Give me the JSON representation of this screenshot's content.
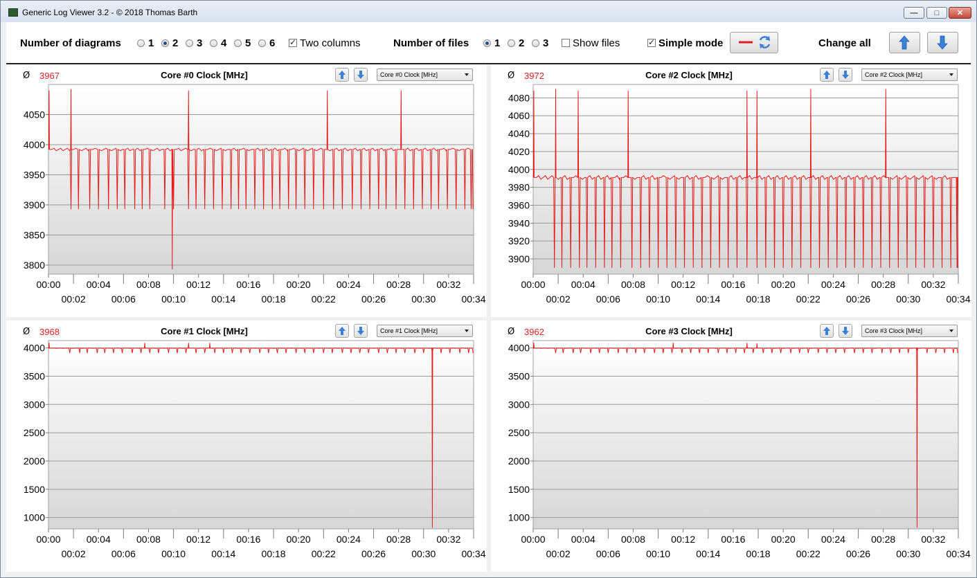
{
  "window": {
    "title": "Generic Log Viewer 3.2 - © 2018 Thomas Barth",
    "min_glyph": "—",
    "max_glyph": "□",
    "close_glyph": "✕"
  },
  "toolbar": {
    "diagrams_label": "Number of diagrams",
    "diagram_options": [
      "1",
      "2",
      "3",
      "4",
      "5",
      "6"
    ],
    "diagram_selected": "2",
    "two_columns_label": "Two columns",
    "two_columns_checked": true,
    "files_label": "Number of files",
    "file_options": [
      "1",
      "2",
      "3"
    ],
    "file_selected": "1",
    "show_files_label": "Show files",
    "show_files_checked": false,
    "simple_mode_label": "Simple mode",
    "simple_mode_checked": true,
    "change_all_label": "Change all",
    "accent_color": "#e41b1b",
    "arrow_color": "#3a7fd8"
  },
  "avg_symbol": "Ø",
  "x_ticks": [
    "00:00",
    "00:02",
    "00:04",
    "00:06",
    "00:08",
    "00:10",
    "00:12",
    "00:14",
    "00:16",
    "00:18",
    "00:20",
    "00:22",
    "00:24",
    "00:26",
    "00:28",
    "00:30",
    "00:32",
    "00:34"
  ],
  "chart_data": [
    {
      "type": "line",
      "title": "Core #0 Clock [MHz]",
      "avg": "3967",
      "selector": "Core #0 Clock [MHz]",
      "color": "#e41b1b",
      "xlim": [
        0,
        34
      ],
      "ylim": [
        3785,
        4100
      ],
      "yticks": [
        3800,
        3850,
        3900,
        3950,
        4000,
        4050
      ],
      "base": 3992,
      "dip": 3893,
      "spikes": [
        [
          0.05,
          4090
        ],
        [
          1.8,
          4092
        ],
        [
          11.2,
          4090
        ],
        [
          22.3,
          4090
        ],
        [
          28.2,
          4090
        ]
      ],
      "deep_dips": [
        [
          9.9,
          3793
        ]
      ],
      "dip_times": [
        1.8,
        2.4,
        3.3,
        4.0,
        4.8,
        5.5,
        6.1,
        6.9,
        7.5,
        8.1,
        9.3,
        10.0,
        11.2,
        11.8,
        12.5,
        13.2,
        13.9,
        14.6,
        15.2,
        15.8,
        16.5,
        17.2,
        17.9,
        18.5,
        19.2,
        19.8,
        20.5,
        21.2,
        22.0,
        22.8,
        23.5,
        24.3,
        25.0,
        25.7,
        26.4,
        27.0,
        27.8,
        28.5,
        29.2,
        29.9,
        30.6,
        31.2,
        31.9,
        32.6,
        33.3,
        33.8
      ]
    },
    {
      "type": "line",
      "title": "Core #2 Clock [MHz]",
      "avg": "3972",
      "selector": "Core #2 Clock [MHz]",
      "color": "#e41b1b",
      "xlim": [
        0,
        34
      ],
      "ylim": [
        3883,
        4095
      ],
      "yticks": [
        3900,
        3920,
        3940,
        3960,
        3980,
        4000,
        4020,
        4040,
        4060,
        4080
      ],
      "base": 3991,
      "dip": 3890,
      "spikes": [
        [
          0.05,
          4088
        ],
        [
          1.8,
          4090
        ],
        [
          3.6,
          4088
        ],
        [
          7.6,
          4088
        ],
        [
          17.1,
          4088
        ],
        [
          17.9,
          4088
        ],
        [
          22.2,
          4090
        ],
        [
          28.2,
          4090
        ]
      ],
      "deep_dips": [],
      "dip_times": [
        1.7,
        2.3,
        3.0,
        3.7,
        4.3,
        5.0,
        5.7,
        6.3,
        7.0,
        7.9,
        8.6,
        9.3,
        10.0,
        10.7,
        11.4,
        12.1,
        12.8,
        13.5,
        14.2,
        14.9,
        15.6,
        16.3,
        17.1,
        17.9,
        18.6,
        19.3,
        20.0,
        20.7,
        21.4,
        22.2,
        22.9,
        23.6,
        24.3,
        25.0,
        25.7,
        26.4,
        27.1,
        27.8,
        28.5,
        29.2,
        29.9,
        30.6,
        31.3,
        32.0,
        32.7,
        33.4,
        33.9
      ]
    },
    {
      "type": "line",
      "title": "Core #1 Clock [MHz]",
      "avg": "3968",
      "selector": "Core #1 Clock [MHz]",
      "color": "#e41b1b",
      "xlim": [
        0,
        34
      ],
      "ylim": [
        800,
        4130
      ],
      "yticks": [
        1000,
        1500,
        2000,
        2500,
        3000,
        3500,
        4000
      ],
      "base": 3995,
      "dip": 3910,
      "spikes": [
        [
          0.05,
          4090
        ],
        [
          7.7,
          4090
        ],
        [
          11.2,
          4090
        ],
        [
          12.9,
          4090
        ]
      ],
      "deep_dips": [
        [
          30.7,
          820
        ]
      ],
      "dip_times": [
        1.7,
        2.5,
        3.1,
        3.9,
        4.5,
        5.2,
        5.9,
        6.7,
        7.4,
        8.1,
        8.8,
        9.6,
        10.3,
        11.0,
        11.8,
        12.5,
        13.3,
        14.0,
        14.7,
        15.4,
        16.1,
        16.9,
        17.6,
        18.3,
        19.0,
        19.8,
        20.5,
        21.2,
        22.0,
        22.7,
        23.5,
        24.2,
        24.9,
        25.6,
        26.4,
        27.1,
        27.8,
        28.5,
        29.3,
        30.0,
        30.7,
        31.4,
        32.1,
        32.9,
        33.6
      ]
    },
    {
      "type": "line",
      "title": "Core #3 Clock [MHz]",
      "avg": "3962",
      "selector": "Core #3 Clock [MHz]",
      "color": "#e41b1b",
      "xlim": [
        0,
        34
      ],
      "ylim": [
        800,
        4130
      ],
      "yticks": [
        1000,
        1500,
        2000,
        2500,
        3000,
        3500,
        4000
      ],
      "base": 3995,
      "dip": 3910,
      "spikes": [
        [
          0.05,
          4090
        ],
        [
          11.2,
          4090
        ],
        [
          17.1,
          4090
        ],
        [
          17.9,
          4080
        ]
      ],
      "deep_dips": [
        [
          30.7,
          820
        ]
      ],
      "dip_times": [
        1.8,
        2.4,
        3.2,
        3.8,
        4.6,
        5.3,
        6.0,
        6.8,
        7.5,
        8.2,
        8.9,
        9.7,
        10.4,
        11.1,
        11.9,
        12.6,
        13.3,
        14.0,
        14.8,
        15.5,
        16.2,
        16.9,
        17.6,
        18.4,
        19.1,
        19.8,
        20.6,
        21.3,
        22.0,
        22.8,
        23.5,
        24.2,
        24.9,
        25.7,
        26.4,
        27.1,
        27.9,
        28.6,
        29.3,
        30.0,
        30.7,
        31.5,
        32.2,
        32.9,
        33.6
      ]
    }
  ]
}
